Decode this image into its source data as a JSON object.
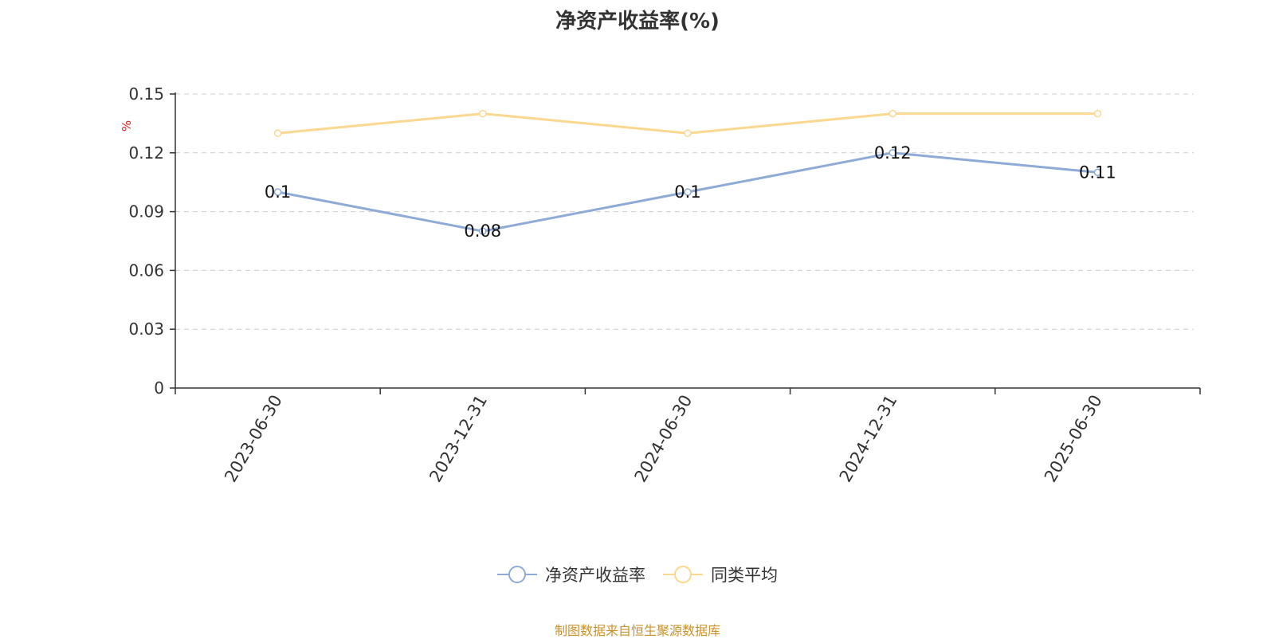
{
  "chart_data": {
    "type": "line",
    "title": "净资产收益率(%)",
    "ylabel": "%",
    "xlabel": "",
    "categories": [
      "2023-06-30",
      "2023-12-31",
      "2024-06-30",
      "2024-12-31",
      "2025-06-30"
    ],
    "ylim": [
      0,
      0.15
    ],
    "yticks": [
      "0",
      "0.03",
      "0.06",
      "0.09",
      "0.12",
      "0.15"
    ],
    "grid": true,
    "legend_position": "bottom",
    "series": [
      {
        "name": "净资产收益率",
        "values": [
          0.1,
          0.08,
          0.1,
          0.12,
          0.11
        ],
        "labels": [
          "0.1",
          "0.08",
          "0.1",
          "0.12",
          "0.11"
        ],
        "color": "#8eaad6"
      },
      {
        "name": "同类平均",
        "values": [
          0.13,
          0.14,
          0.13,
          0.14,
          0.14
        ],
        "color": "#fbd88f"
      }
    ]
  },
  "source_note": "制图数据来自恒生聚源数据库"
}
